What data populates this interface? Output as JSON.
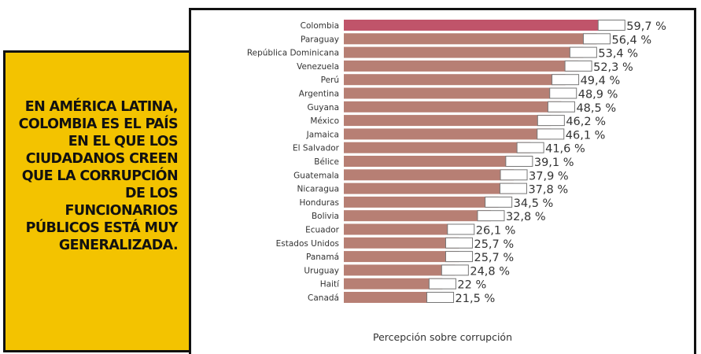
{
  "headline": "EN AMÉRICA LATINA, COLOMBIA ES EL PAÍS EN EL QUE LOS CIUDADANOS CREEN QUE LA CORRUPCIÓN DE LOS FUNCIONARIOS PÚBLICOS ESTÁ MUY GENERALIZADA.",
  "colors": {
    "panel": "#f3c300",
    "highlight_bar": "#c0546a",
    "bar": "#b77f74"
  },
  "chart_data": {
    "type": "bar",
    "orientation": "horizontal",
    "xlabel": "Percepción sobre corrupción",
    "xlim": [
      0,
      60
    ],
    "highlight": "Colombia",
    "data_labels": [
      "59,7 %",
      "56,4 %",
      "53,4 %",
      "52,3 %",
      "49,4 %",
      "48,9 %",
      "48,5 %",
      "46,2 %",
      "46,1 %",
      "41,6 %",
      "39,1 %",
      "37,9 %",
      "37,8 %",
      "34,5 %",
      "32,8 %",
      "26,1 %",
      "25,7 %",
      "25,7 %",
      "24,8 %",
      "22 %",
      "21,5 %"
    ],
    "categories": [
      "Colombia",
      "Paraguay",
      "República Dominicana",
      "Venezuela",
      "Perú",
      "Argentina",
      "Guyana",
      "México",
      "Jamaica",
      "El Salvador",
      "Bélice",
      "Guatemala",
      "Nicaragua",
      "Honduras",
      "Bolivia",
      "Ecuador",
      "Estados Unidos",
      "Panamá",
      "Uruguay",
      "Haití",
      "Canadá"
    ],
    "values": [
      59.7,
      56.4,
      53.4,
      52.3,
      49.4,
      48.9,
      48.5,
      46.2,
      46.1,
      41.6,
      39.1,
      37.9,
      37.8,
      34.5,
      32.8,
      26.1,
      25.7,
      25.7,
      24.8,
      22,
      21.5
    ]
  }
}
